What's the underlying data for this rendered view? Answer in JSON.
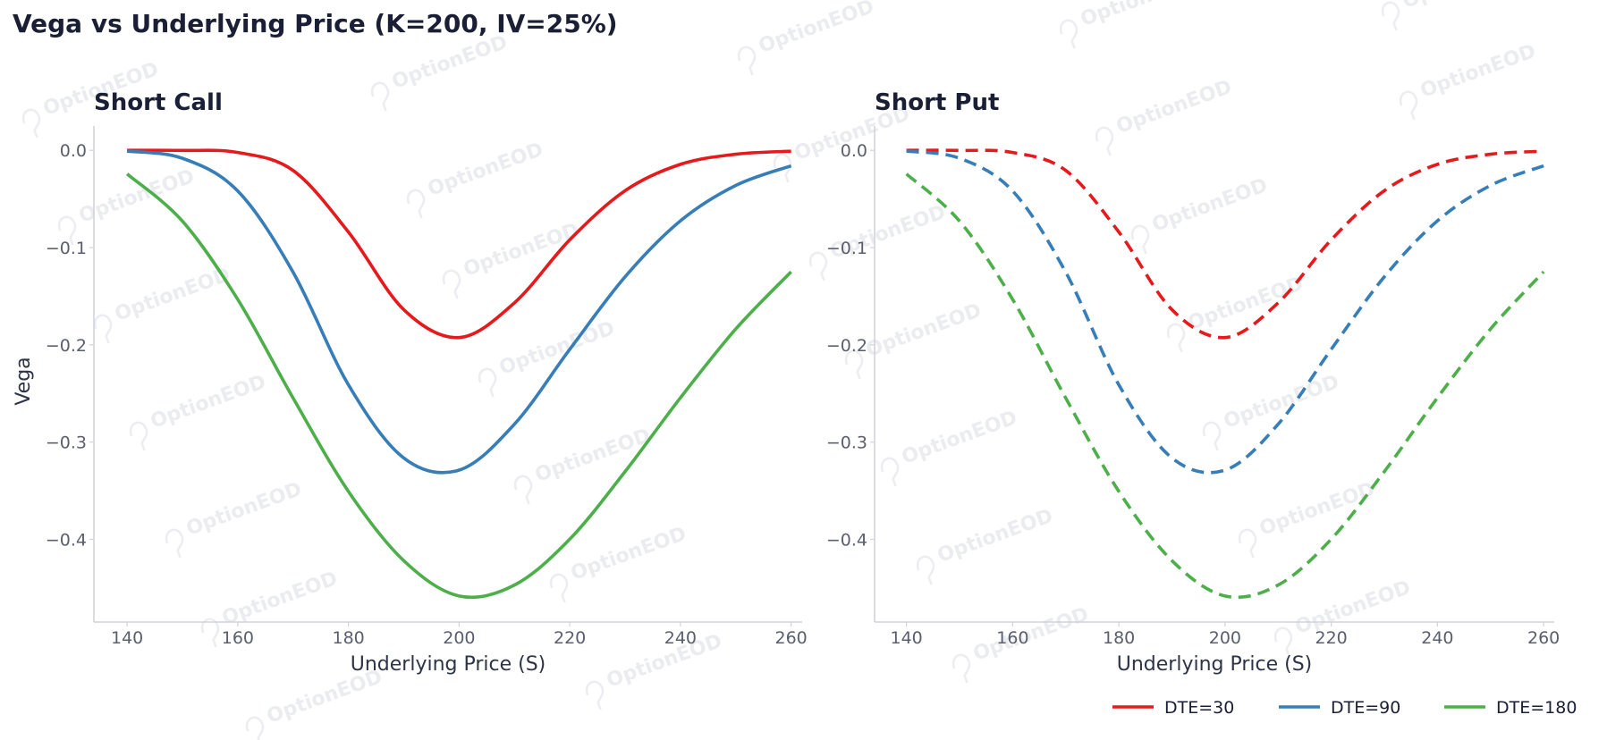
{
  "title": "Vega vs Underlying Price (K=200, IV=25%)",
  "watermark": "OptionEOD",
  "colors": {
    "DTE=30": "#e41a1c",
    "DTE=90": "#377eb8",
    "DTE=180": "#4daf4a"
  },
  "chart_data": [
    {
      "type": "line",
      "title": "Short Call",
      "xlabel": "Underlying Price (S)",
      "ylabel": "Vega",
      "xlim": [
        134,
        262
      ],
      "ylim": [
        -0.485,
        0.025
      ],
      "xticks": [
        140,
        160,
        180,
        200,
        220,
        240,
        260
      ],
      "xtick_labels": [
        "140",
        "160",
        "180",
        "200",
        "220",
        "240",
        "260"
      ],
      "yticks": [
        0.0,
        -0.1,
        -0.2,
        -0.3,
        -0.4
      ],
      "ytick_labels": [
        "0.0",
        "−0.1",
        "−0.2",
        "−0.3",
        "−0.4"
      ],
      "line_style": "solid",
      "grid": false,
      "x": [
        140,
        150,
        160,
        170,
        180,
        190,
        200,
        210,
        220,
        230,
        240,
        250,
        260
      ],
      "series": [
        {
          "name": "DTE=30",
          "values": [
            0.0,
            -0.0001,
            -0.0022,
            -0.0207,
            -0.084,
            -0.1638,
            -0.1925,
            -0.1568,
            -0.092,
            -0.0415,
            -0.0144,
            -0.004,
            -0.0009
          ]
        },
        {
          "name": "DTE=90",
          "values": [
            -0.0008,
            -0.0082,
            -0.0418,
            -0.1253,
            -0.2411,
            -0.3163,
            -0.3288,
            -0.2816,
            -0.2046,
            -0.13,
            -0.0725,
            -0.0361,
            -0.0159
          ]
        },
        {
          "name": "DTE=180",
          "values": [
            -0.0243,
            -0.0728,
            -0.1533,
            -0.2547,
            -0.3507,
            -0.4219,
            -0.4582,
            -0.447,
            -0.3998,
            -0.3303,
            -0.2544,
            -0.1837,
            -0.1249
          ]
        }
      ]
    },
    {
      "type": "line",
      "title": "Short Put",
      "xlabel": "Underlying Price (S)",
      "ylabel": "",
      "xlim": [
        134,
        262
      ],
      "ylim": [
        -0.485,
        0.025
      ],
      "xticks": [
        140,
        160,
        180,
        200,
        220,
        240,
        260
      ],
      "xtick_labels": [
        "140",
        "160",
        "180",
        "200",
        "220",
        "240",
        "260"
      ],
      "yticks": [
        0.0,
        -0.1,
        -0.2,
        -0.3,
        -0.4
      ],
      "ytick_labels": [
        "0.0",
        "−0.1",
        "−0.2",
        "−0.3",
        "−0.4"
      ],
      "line_style": "dashed",
      "grid": false,
      "legend": "bottom-right",
      "x": [
        140,
        150,
        160,
        170,
        180,
        190,
        200,
        210,
        220,
        230,
        240,
        250,
        260
      ],
      "series": [
        {
          "name": "DTE=30",
          "values": [
            0.0,
            -0.0001,
            -0.0022,
            -0.0207,
            -0.084,
            -0.1638,
            -0.1925,
            -0.1568,
            -0.092,
            -0.0415,
            -0.0144,
            -0.004,
            -0.0009
          ]
        },
        {
          "name": "DTE=90",
          "values": [
            -0.0008,
            -0.0082,
            -0.0418,
            -0.1253,
            -0.2411,
            -0.3163,
            -0.3288,
            -0.2816,
            -0.2046,
            -0.13,
            -0.0725,
            -0.0361,
            -0.0159
          ]
        },
        {
          "name": "DTE=180",
          "values": [
            -0.0243,
            -0.0728,
            -0.1533,
            -0.2547,
            -0.3507,
            -0.4219,
            -0.4582,
            -0.447,
            -0.3998,
            -0.3303,
            -0.2544,
            -0.1837,
            -0.1249
          ]
        }
      ]
    }
  ],
  "legend": {
    "items": [
      "DTE=30",
      "DTE=90",
      "DTE=180"
    ]
  }
}
